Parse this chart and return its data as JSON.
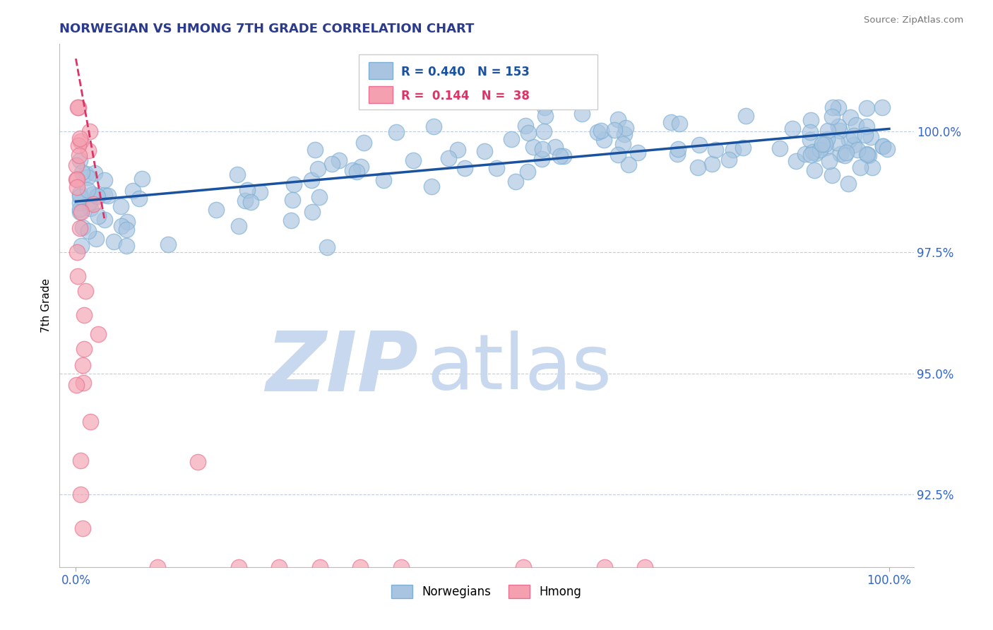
{
  "title": "NORWEGIAN VS HMONG 7TH GRADE CORRELATION CHART",
  "source_text": "Source: ZipAtlas.com",
  "ylabel": "7th Grade",
  "x_ticklabels": [
    "0.0%",
    "100.0%"
  ],
  "x_ticks": [
    0.0,
    100.0
  ],
  "y_ticks": [
    92.5,
    95.0,
    97.5,
    100.0
  ],
  "y_ticklabels": [
    "92.5%",
    "95.0%",
    "97.5%",
    "100.0%"
  ],
  "xlim": [
    -2.0,
    103.0
  ],
  "ylim": [
    91.0,
    101.8
  ],
  "legend_labels": [
    "Norwegians",
    "Hmong"
  ],
  "R_norwegian": 0.44,
  "N_norwegian": 153,
  "R_hmong": 0.144,
  "N_hmong": 38,
  "blue_color": "#A8C4E0",
  "blue_edge_color": "#7BAFD4",
  "pink_color": "#F4A0B0",
  "pink_edge_color": "#E87090",
  "blue_line_color": "#1A52A0",
  "pink_line_color": "#DD3366",
  "watermark_zip": "ZIP",
  "watermark_atlas": "atlas",
  "watermark_color_zip": "#C8D8EE",
  "watermark_color_atlas": "#C8D8EE",
  "title_color": "#2B3A8B",
  "tick_color": "#3366CC",
  "grid_color": "#C0CDE0",
  "background_color": "#FFFFFF",
  "nor_line_x0": 0.0,
  "nor_line_y0": 98.55,
  "nor_line_x1": 100.0,
  "nor_line_y1": 100.05,
  "hmong_line_x0": 0.0,
  "hmong_line_y0": 101.5,
  "hmong_line_x1": 3.5,
  "hmong_line_y1": 98.2
}
